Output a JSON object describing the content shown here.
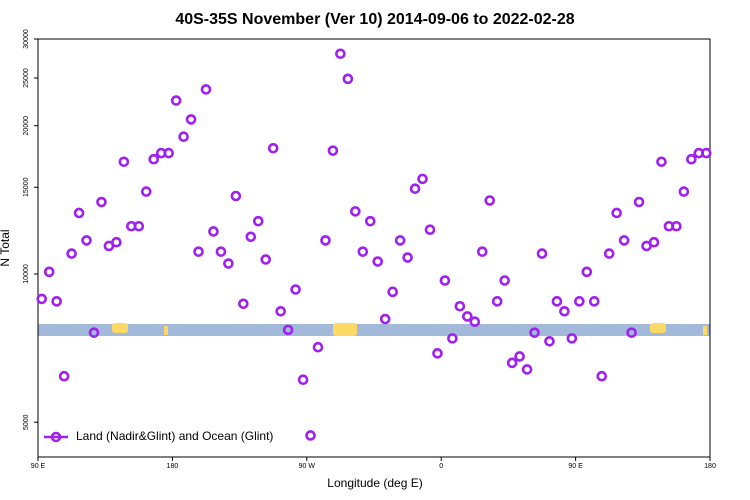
{
  "chart_data": {
    "type": "scatter",
    "title": "40S-35S November (Ver 10)   2014-09-06 to 2022-02-28",
    "x_label": "Longitude (deg E)",
    "y_label": "N Total",
    "log_y": true,
    "xlim": [
      90,
      540
    ],
    "ylim": [
      4250,
      30000
    ],
    "xticks": [
      {
        "value": 90,
        "label": "90 E"
      },
      180,
      {
        "value": 270,
        "label": "90 W"
      },
      {
        "value": 360,
        "label": "0"
      },
      {
        "value": 450,
        "label": "90 E"
      },
      {
        "value": 540,
        "label": "180"
      }
    ],
    "yticks": [
      5000,
      10000,
      15000,
      20000,
      25000,
      30000
    ],
    "legend": "bottom-left",
    "series": [
      {
        "name": "Land (Nadir&Glint) and Ocean (Glint)",
        "color": "#a020f0",
        "x": [
          92.5,
          97.5,
          102.5,
          107.5,
          112.5,
          117.5,
          122.5,
          127.5,
          132.5,
          137.5,
          142.5,
          147.5,
          152.5,
          157.5,
          162.5,
          167.5,
          172.5,
          177.5,
          182.5,
          187.5,
          192.5,
          197.5,
          202.5,
          207.5,
          212.5,
          217.5,
          222.5,
          227.5,
          232.5,
          237.5,
          242.5,
          247.5,
          252.5,
          257.5,
          262.5,
          267.5,
          272.5,
          277.5,
          282.5,
          287.5,
          292.5,
          297.5,
          302.5,
          307.5,
          312.5,
          317.5,
          322.5,
          327.5,
          332.5,
          337.5,
          342.5,
          347.5,
          352.5,
          357.5,
          362.5,
          367.5,
          372.5,
          377.5,
          382.5,
          387.5,
          392.5,
          397.5,
          402.5,
          407.5,
          412.5,
          417.5,
          422.5,
          427.5,
          432.5,
          437.5,
          442.5,
          447.5,
          452.5,
          457.5,
          462.5,
          467.5,
          472.5,
          477.5,
          482.5,
          487.5,
          492.5,
          497.5,
          502.5,
          507.5,
          512.5,
          517.5,
          522.5,
          527.5,
          532.5,
          537.5
        ],
        "values": [
          8900,
          10100,
          8800,
          6200,
          11000,
          13300,
          11700,
          7600,
          14000,
          11400,
          11600,
          16900,
          12500,
          12500,
          14700,
          17100,
          17600,
          17600,
          22500,
          19000,
          20600,
          11100,
          23700,
          12200,
          11100,
          10500,
          14400,
          8700,
          11900,
          12800,
          10700,
          18000,
          8400,
          7700,
          9300,
          6100,
          4700,
          7100,
          11700,
          17800,
          28000,
          24900,
          13400,
          11100,
          12800,
          10600,
          8100,
          9200,
          11700,
          10800,
          14900,
          15600,
          12300,
          6900,
          9700,
          7400,
          8600,
          8200,
          8000,
          11100,
          14100,
          8800,
          9700,
          6600,
          6800,
          6400,
          7600,
          11000,
          7300,
          8800,
          8400,
          7400,
          8800,
          10100,
          8800,
          6200,
          11000,
          13300,
          11700,
          7600,
          14000,
          11400,
          11600,
          16900,
          12500,
          12500,
          14700,
          17100,
          17600,
          17600
        ]
      }
    ]
  }
}
